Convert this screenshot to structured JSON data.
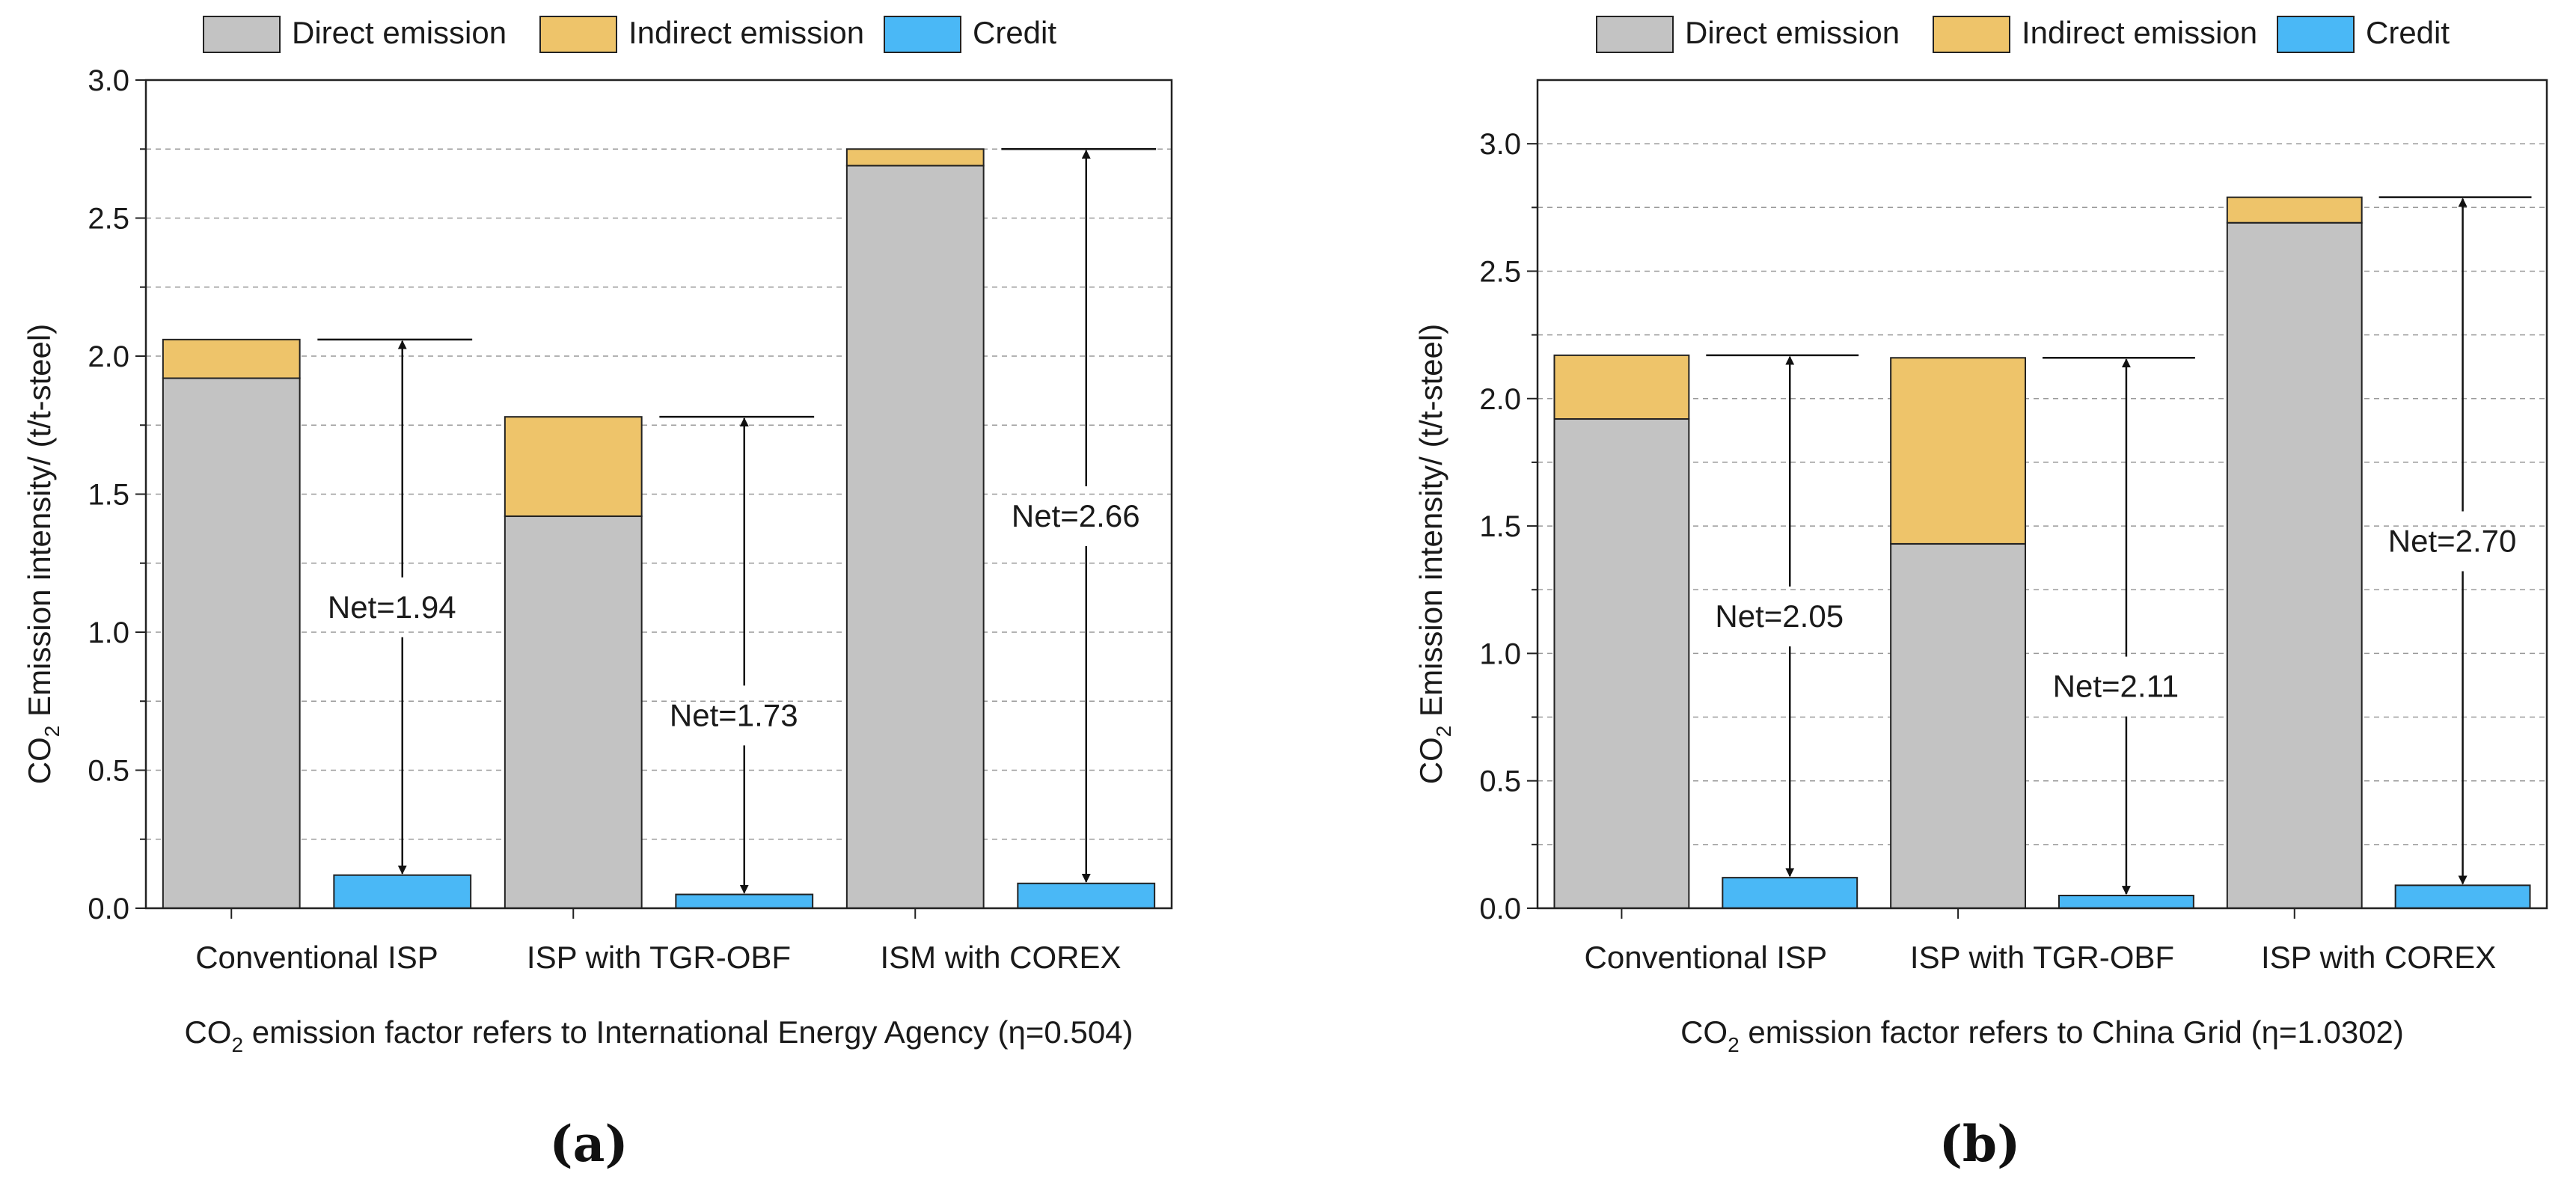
{
  "legend": {
    "items": [
      {
        "name": "Direct emission",
        "color": "#c3c3c3"
      },
      {
        "name": "Indirect emission",
        "color": "#eec46a"
      },
      {
        "name": "Credit",
        "color": "#4ab8f6"
      }
    ]
  },
  "chart_data": [
    {
      "panel": "(a)",
      "type": "bar",
      "stacked": true,
      "xlabel": "CO2 emission factor refers to International Energy Agency (η=0.504)",
      "ylabel": "CO2 Emission intensity/ (t/t-steel)",
      "ylim": [
        0,
        3.0
      ],
      "yticks": [
        0,
        0.5,
        1.0,
        1.5,
        2.0,
        2.5,
        3.0
      ],
      "ytick_labels": [
        "0.0",
        "0.5",
        "1.0",
        "1.5",
        "2.0",
        "2.5",
        "3.0"
      ],
      "grid": "dashed horizontal at 0.25 intervals",
      "categories": [
        "Conventional ISP",
        "ISP with TGR-OBF",
        "ISM with COREX"
      ],
      "series": [
        {
          "name": "Direct emission",
          "values": [
            1.92,
            1.42,
            2.69
          ]
        },
        {
          "name": "Indirect emission",
          "values": [
            0.14,
            0.36,
            0.06
          ]
        },
        {
          "name": "Credit",
          "values": [
            0.12,
            0.05,
            0.09
          ]
        }
      ],
      "net_labels": [
        "Net=1.94",
        "Net=1.73",
        "Net=2.66"
      ],
      "net_values": [
        1.94,
        1.73,
        2.66
      ]
    },
    {
      "panel": "(b)",
      "type": "bar",
      "stacked": true,
      "xlabel": "CO2 emission factor refers to China Grid (η=1.0302)",
      "ylabel": "CO2 Emission intensity/ (t/t-steel)",
      "ylim": [
        0,
        3.25
      ],
      "yticks": [
        0,
        0.5,
        1.0,
        1.5,
        2.0,
        2.5,
        3.0
      ],
      "ytick_labels": [
        "0.0",
        "0.5",
        "1.0",
        "1.5",
        "2.0",
        "2.5",
        "3.0"
      ],
      "grid": "dashed horizontal at 0.25 intervals",
      "categories": [
        "Conventional ISP",
        "ISP with TGR-OBF",
        "ISP with COREX"
      ],
      "series": [
        {
          "name": "Direct emission",
          "values": [
            1.92,
            1.43,
            2.69
          ]
        },
        {
          "name": "Indirect emission",
          "values": [
            0.25,
            0.73,
            0.1
          ]
        },
        {
          "name": "Credit",
          "values": [
            0.12,
            0.05,
            0.09
          ]
        }
      ],
      "net_labels": [
        "Net=2.05",
        "Net=2.11",
        "Net=2.70"
      ],
      "net_values": [
        2.05,
        2.11,
        2.7
      ]
    }
  ]
}
